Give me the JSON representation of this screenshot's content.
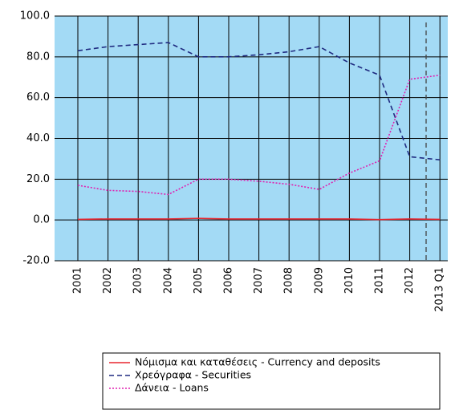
{
  "chart_data": {
    "type": "line",
    "categories": [
      "2001",
      "2002",
      "2003",
      "2004",
      "2005",
      "2006",
      "2007",
      "2008",
      "2009",
      "2010",
      "2011",
      "2012",
      "2013 Q1"
    ],
    "series": [
      {
        "name": "Νόμισμα και καταθέσεις - Currency and deposits",
        "color": "#e8252e",
        "dash": "solid",
        "values": [
          0.3,
          0.5,
          0.5,
          0.5,
          0.8,
          0.5,
          0.5,
          0.5,
          0.5,
          0.5,
          0.2,
          0.5,
          0.3
        ]
      },
      {
        "name": "Χρεόγραφα - Securities",
        "color": "#1f2a80",
        "dash": "dashed",
        "values": [
          83,
          85,
          86,
          87,
          80,
          80,
          81,
          82.5,
          85,
          77,
          71,
          31,
          29.5
        ]
      },
      {
        "name": "Δάνεια - Loans",
        "color": "#e020b0",
        "dash": "dotted",
        "values": [
          17,
          14.5,
          14,
          12.5,
          20,
          20,
          19,
          17.5,
          15,
          23,
          29,
          69,
          71
        ]
      }
    ],
    "ylim": [
      -20,
      100
    ],
    "yticks": [
      {
        "value": -20,
        "label": "-20.0"
      },
      {
        "value": 0,
        "label": "0.0"
      },
      {
        "value": 20,
        "label": "20.0"
      },
      {
        "value": 40,
        "label": "40.0"
      },
      {
        "value": 60,
        "label": "60.0"
      },
      {
        "value": 80,
        "label": "80.0"
      },
      {
        "value": 100,
        "label": "100.0"
      }
    ],
    "grid": true
  }
}
